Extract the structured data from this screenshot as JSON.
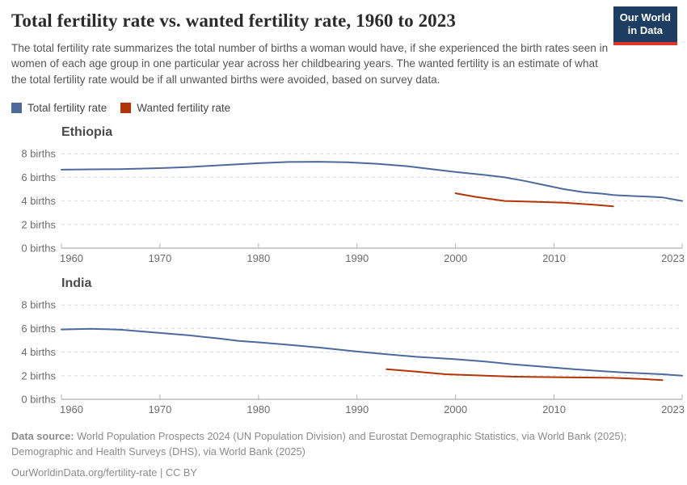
{
  "header": {
    "title": "Total fertility rate vs. wanted fertility rate, 1960 to 2023",
    "subtitle": "The total fertility rate summarizes the total number of births a woman would have, if she experienced the birth rates seen in women of each age group in one particular year across her childbearing years. The wanted fertility is an estimate of what the total fertility rate would be if all unwanted births were avoided, based on survey data.",
    "logo": {
      "line1": "Our World",
      "line2": "in Data",
      "bg_color": "#1d3d63",
      "accent_color": "#e0352b"
    }
  },
  "legend": {
    "items": [
      {
        "label": "Total fertility rate",
        "color": "#4C6A9C"
      },
      {
        "label": "Wanted fertility rate",
        "color": "#B13507"
      }
    ]
  },
  "chart_data": [
    {
      "type": "line",
      "title": "Ethiopia",
      "xlabel": "",
      "ylabel": "births",
      "xlim": [
        1960,
        2023
      ],
      "ylim": [
        0,
        8
      ],
      "grid": true,
      "x_ticks": [
        1960,
        1970,
        1980,
        1990,
        2000,
        2010,
        2023
      ],
      "y_ticks": [
        0,
        2,
        4,
        6,
        8
      ],
      "y_tick_labels": [
        "0 births",
        "2 births",
        "4 births",
        "6 births",
        "8 births"
      ],
      "series": [
        {
          "name": "Total fertility rate",
          "color": "#4C6A9C",
          "points": [
            [
              1960,
              6.65
            ],
            [
              1963,
              6.68
            ],
            [
              1966,
              6.7
            ],
            [
              1970,
              6.78
            ],
            [
              1973,
              6.88
            ],
            [
              1976,
              7.02
            ],
            [
              1980,
              7.2
            ],
            [
              1983,
              7.3
            ],
            [
              1986,
              7.32
            ],
            [
              1989,
              7.28
            ],
            [
              1992,
              7.15
            ],
            [
              1995,
              6.95
            ],
            [
              1998,
              6.65
            ],
            [
              2000,
              6.45
            ],
            [
              2003,
              6.2
            ],
            [
              2005,
              6.0
            ],
            [
              2007,
              5.7
            ],
            [
              2009,
              5.35
            ],
            [
              2011,
              5.0
            ],
            [
              2013,
              4.75
            ],
            [
              2015,
              4.6
            ],
            [
              2016,
              4.5
            ],
            [
              2018,
              4.42
            ],
            [
              2020,
              4.35
            ],
            [
              2021,
              4.3
            ],
            [
              2023,
              4.0
            ]
          ]
        },
        {
          "name": "Wanted fertility rate",
          "color": "#B13507",
          "points": [
            [
              2000,
              4.65
            ],
            [
              2002,
              4.35
            ],
            [
              2005,
              4.0
            ],
            [
              2008,
              3.93
            ],
            [
              2011,
              3.85
            ],
            [
              2014,
              3.68
            ],
            [
              2016,
              3.55
            ]
          ]
        }
      ]
    },
    {
      "type": "line",
      "title": "India",
      "xlabel": "",
      "ylabel": "births",
      "xlim": [
        1960,
        2023
      ],
      "ylim": [
        0,
        8
      ],
      "grid": true,
      "x_ticks": [
        1960,
        1970,
        1980,
        1990,
        2000,
        2010,
        2023
      ],
      "y_ticks": [
        0,
        2,
        4,
        6,
        8
      ],
      "y_tick_labels": [
        "0 births",
        "2 births",
        "4 births",
        "6 births",
        "8 births"
      ],
      "series": [
        {
          "name": "Total fertility rate",
          "color": "#4C6A9C",
          "points": [
            [
              1960,
              5.92
            ],
            [
              1963,
              5.98
            ],
            [
              1966,
              5.9
            ],
            [
              1970,
              5.62
            ],
            [
              1973,
              5.42
            ],
            [
              1976,
              5.15
            ],
            [
              1978,
              4.95
            ],
            [
              1980,
              4.83
            ],
            [
              1983,
              4.62
            ],
            [
              1986,
              4.4
            ],
            [
              1990,
              4.05
            ],
            [
              1993,
              3.82
            ],
            [
              1996,
              3.6
            ],
            [
              2000,
              3.4
            ],
            [
              2003,
              3.2
            ],
            [
              2006,
              2.95
            ],
            [
              2009,
              2.75
            ],
            [
              2012,
              2.55
            ],
            [
              2015,
              2.38
            ],
            [
              2017,
              2.28
            ],
            [
              2019,
              2.2
            ],
            [
              2021,
              2.12
            ],
            [
              2023,
              2.0
            ]
          ]
        },
        {
          "name": "Wanted fertility rate",
          "color": "#B13507",
          "points": [
            [
              1993,
              2.55
            ],
            [
              1996,
              2.35
            ],
            [
              1999,
              2.12
            ],
            [
              2003,
              2.0
            ],
            [
              2006,
              1.92
            ],
            [
              2010,
              1.88
            ],
            [
              2013,
              1.85
            ],
            [
              2016,
              1.82
            ],
            [
              2019,
              1.72
            ],
            [
              2021,
              1.62
            ]
          ]
        }
      ]
    }
  ],
  "footer": {
    "source_label": "Data source:",
    "source_text": " World Population Prospects 2024 (UN Population Division) and Eurostat Demographic Statistics, via World Bank (2025); Demographic and Health Surveys (DHS), via World Bank (2025)",
    "link_text": "OurWorldinData.org/fertility-rate | CC BY"
  }
}
